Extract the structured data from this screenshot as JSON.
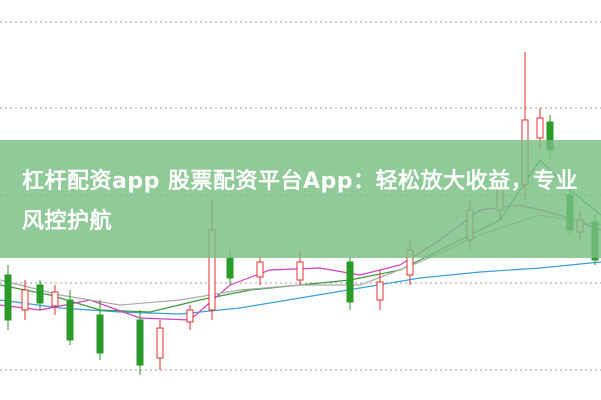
{
  "banner": {
    "title": "杠杆配资app 股票配资平台App：轻松放大收益，专业风控护航"
  }
}
